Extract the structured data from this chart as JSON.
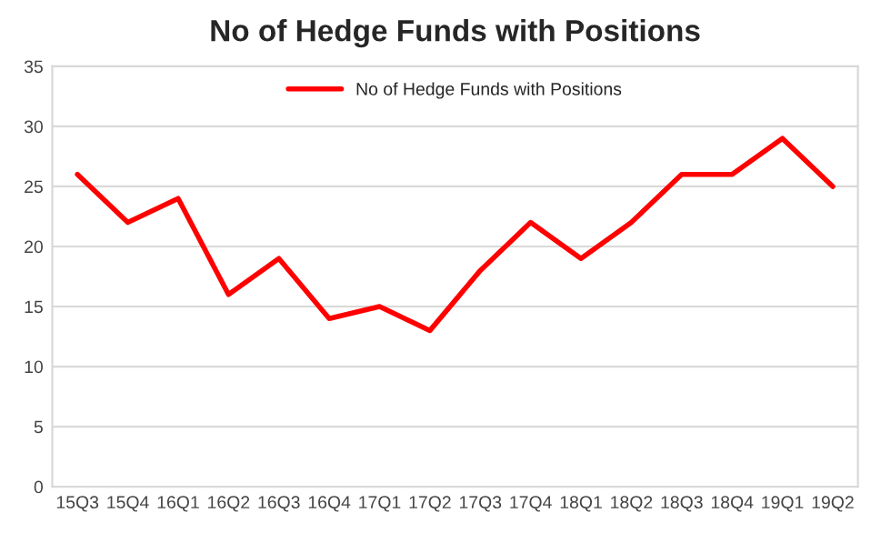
{
  "chart_data": {
    "type": "line",
    "title": "No of Hedge Funds with Positions",
    "categories": [
      "15Q3",
      "15Q4",
      "16Q1",
      "16Q2",
      "16Q3",
      "16Q4",
      "17Q1",
      "17Q2",
      "17Q3",
      "17Q4",
      "18Q1",
      "18Q2",
      "18Q3",
      "18Q4",
      "19Q1",
      "19Q2"
    ],
    "series": [
      {
        "name": "No of Hedge Funds with Positions",
        "color": "#ff0000",
        "values": [
          26,
          22,
          24,
          16,
          19,
          14,
          15,
          13,
          18,
          22,
          19,
          22,
          26,
          26,
          29,
          25
        ]
      }
    ],
    "ylim": [
      0,
      35
    ],
    "yticks": [
      0,
      5,
      10,
      15,
      20,
      25,
      30,
      35
    ],
    "grid": "y",
    "legend": "top",
    "marker": "none",
    "line_style": "solid"
  }
}
